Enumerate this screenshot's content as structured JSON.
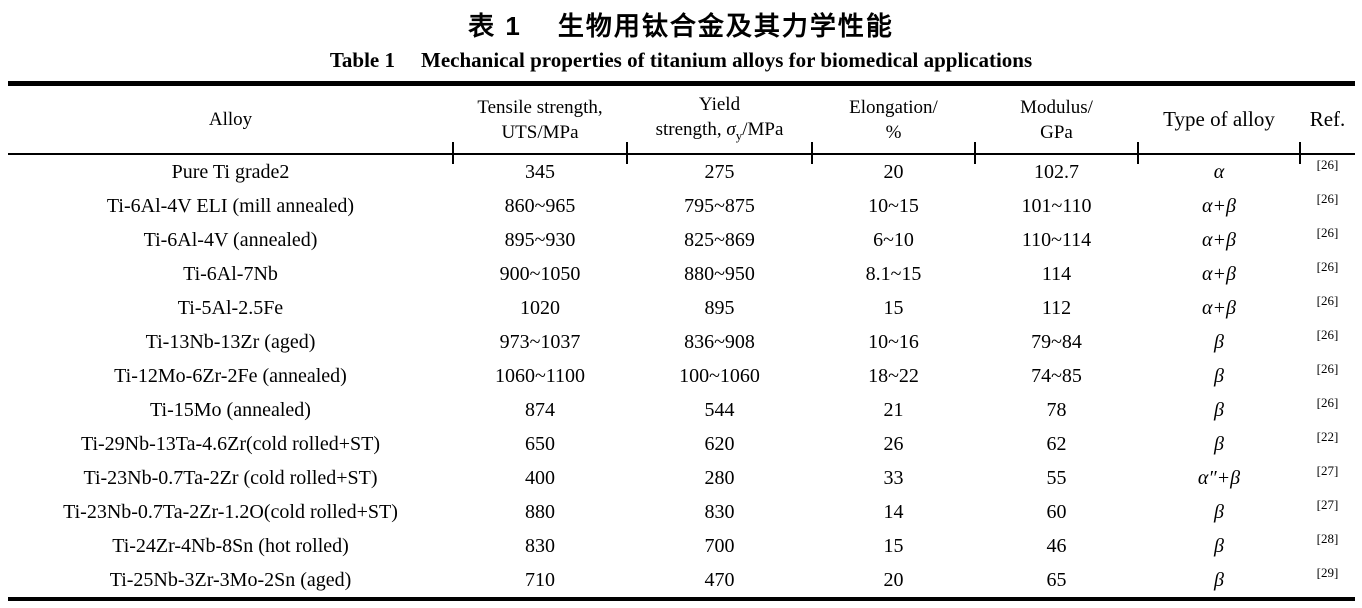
{
  "titles": {
    "cn_label": "表 1",
    "cn_text": "生物用钛合金及其力学性能",
    "en_label": "Table 1",
    "en_text": "Mechanical properties of titanium alloys for biomedical applications"
  },
  "colors": {
    "text": "#000000",
    "rule": "#000000",
    "background": "#ffffff"
  },
  "table": {
    "header": {
      "alloy": "Alloy",
      "tensile_line1": "Tensile strength,",
      "tensile_line2": "UTS/MPa",
      "yield_line1": "Yield",
      "yield_line2_pre": "strength, ",
      "yield_sigma": "σ",
      "yield_sigma_sub": "y",
      "yield_line2_post": "/MPa",
      "elongation_line1": "Elongation/",
      "elongation_line2": "%",
      "modulus_line1": "Modulus/",
      "modulus_line2": "GPa",
      "type": "Type of alloy",
      "ref": "Ref."
    },
    "rows": [
      {
        "alloy": "Pure Ti grade2",
        "uts": "345",
        "yield": "275",
        "elongation": "20",
        "modulus": "102.7",
        "type": "α",
        "ref": "[26]"
      },
      {
        "alloy": "Ti-6Al-4V ELI (mill annealed)",
        "uts": "860~965",
        "yield": "795~875",
        "elongation": "10~15",
        "modulus": "101~110",
        "type": "α+β",
        "ref": "[26]"
      },
      {
        "alloy": "Ti-6Al-4V (annealed)",
        "uts": "895~930",
        "yield": "825~869",
        "elongation": "6~10",
        "modulus": "110~114",
        "type": "α+β",
        "ref": "[26]"
      },
      {
        "alloy": "Ti-6Al-7Nb",
        "uts": "900~1050",
        "yield": "880~950",
        "elongation": "8.1~15",
        "modulus": "114",
        "type": "α+β",
        "ref": "[26]"
      },
      {
        "alloy": "Ti-5Al-2.5Fe",
        "uts": "1020",
        "yield": "895",
        "elongation": "15",
        "modulus": "112",
        "type": "α+β",
        "ref": "[26]"
      },
      {
        "alloy": "Ti-13Nb-13Zr (aged)",
        "uts": "973~1037",
        "yield": "836~908",
        "elongation": "10~16",
        "modulus": "79~84",
        "type": "β",
        "ref": "[26]"
      },
      {
        "alloy": "Ti-12Mo-6Zr-2Fe (annealed)",
        "uts": "1060~1100",
        "yield": "100~1060",
        "elongation": "18~22",
        "modulus": "74~85",
        "type": "β",
        "ref": "[26]"
      },
      {
        "alloy": "Ti-15Mo (annealed)",
        "uts": "874",
        "yield": "544",
        "elongation": "21",
        "modulus": "78",
        "type": "β",
        "ref": "[26]"
      },
      {
        "alloy": "Ti-29Nb-13Ta-4.6Zr(cold rolled+ST)",
        "uts": "650",
        "yield": "620",
        "elongation": "26",
        "modulus": "62",
        "type": "β",
        "ref": "[22]"
      },
      {
        "alloy": "Ti-23Nb-0.7Ta-2Zr (cold rolled+ST)",
        "uts": "400",
        "yield": "280",
        "elongation": "33",
        "modulus": "55",
        "type": "α″+β",
        "ref": "[27]"
      },
      {
        "alloy": "Ti-23Nb-0.7Ta-2Zr-1.2O(cold rolled+ST)",
        "uts": "880",
        "yield": "830",
        "elongation": "14",
        "modulus": "60",
        "type": "β",
        "ref": "[27]"
      },
      {
        "alloy": "Ti-24Zr-4Nb-8Sn (hot rolled)",
        "uts": "830",
        "yield": "700",
        "elongation": "15",
        "modulus": "46",
        "type": "β",
        "ref": "[28]"
      },
      {
        "alloy": "Ti-25Nb-3Zr-3Mo-2Sn (aged)",
        "uts": "710",
        "yield": "470",
        "elongation": "20",
        "modulus": "65",
        "type": "β",
        "ref": "[29]"
      }
    ]
  }
}
